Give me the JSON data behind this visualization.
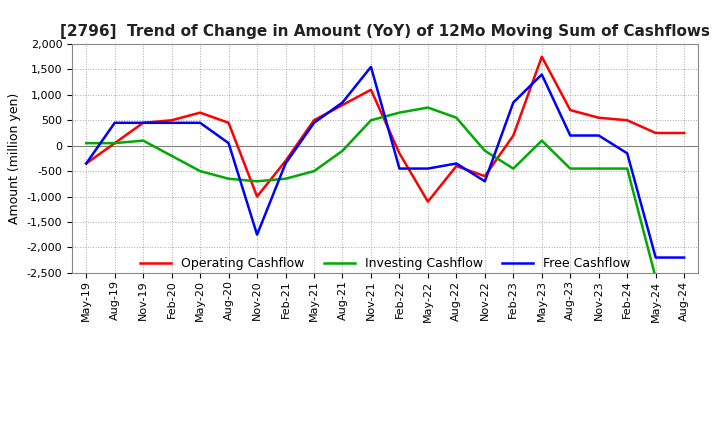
{
  "title": "[2796]  Trend of Change in Amount (YoY) of 12Mo Moving Sum of Cashflows",
  "ylabel": "Amount (million yen)",
  "xlabels": [
    "May-19",
    "Aug-19",
    "Nov-19",
    "Feb-20",
    "May-20",
    "Aug-20",
    "Nov-20",
    "Feb-21",
    "May-21",
    "Aug-21",
    "Nov-21",
    "Feb-22",
    "May-22",
    "Aug-22",
    "Nov-22",
    "Feb-23",
    "May-23",
    "Aug-23",
    "Nov-23",
    "Feb-24",
    "May-24",
    "Aug-24"
  ],
  "operating": [
    -350,
    50,
    450,
    500,
    650,
    450,
    -1000,
    -300,
    500,
    800,
    1100,
    -150,
    -1100,
    -400,
    -600,
    200,
    1750,
    700,
    550,
    500,
    250,
    250
  ],
  "investing": [
    50,
    50,
    100,
    -200,
    -500,
    -650,
    -700,
    -650,
    -500,
    -100,
    500,
    650,
    750,
    550,
    -100,
    -450,
    100,
    -450,
    -450,
    -450,
    -2600,
    -2600
  ],
  "free": [
    -350,
    450,
    450,
    450,
    450,
    50,
    -1750,
    -350,
    450,
    850,
    1550,
    -450,
    -450,
    -350,
    -700,
    850,
    1400,
    200,
    200,
    -150,
    -2200,
    -2200
  ],
  "ylim": [
    -2500,
    2000
  ],
  "yticks": [
    -2500,
    -2000,
    -1500,
    -1000,
    -500,
    0,
    500,
    1000,
    1500,
    2000
  ],
  "operating_color": "#FF0000",
  "investing_color": "#00AA00",
  "free_color": "#0000FF",
  "bg_color": "#FFFFFF",
  "grid_color": "#AAAAAA",
  "title_color": "#222222",
  "title_fontsize": 11,
  "label_fontsize": 9,
  "tick_fontsize": 8,
  "legend_fontsize": 9,
  "linewidth": 1.8
}
